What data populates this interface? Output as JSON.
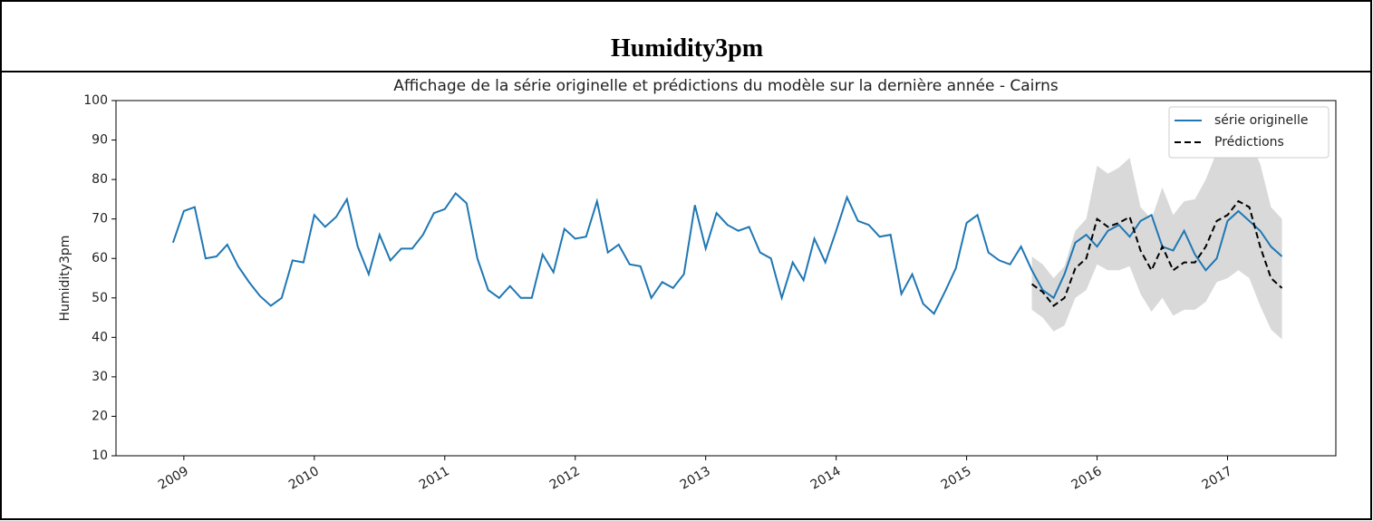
{
  "header": {
    "title": "Humidity3pm"
  },
  "chart_data": {
    "type": "line",
    "title": "Affichage de la série originelle et prédictions du modèle sur la dernière année - Cairns",
    "y_label": "Humidity3pm",
    "x": [
      2008.917,
      2009.0,
      2009.083,
      2009.167,
      2009.25,
      2009.333,
      2009.417,
      2009.5,
      2009.583,
      2009.667,
      2009.75,
      2009.833,
      2009.917,
      2010.0,
      2010.083,
      2010.167,
      2010.25,
      2010.333,
      2010.417,
      2010.5,
      2010.583,
      2010.667,
      2010.75,
      2010.833,
      2010.917,
      2011.0,
      2011.083,
      2011.167,
      2011.25,
      2011.333,
      2011.417,
      2011.5,
      2011.583,
      2011.667,
      2011.75,
      2011.833,
      2011.917,
      2012.0,
      2012.083,
      2012.167,
      2012.25,
      2012.333,
      2012.417,
      2012.5,
      2012.583,
      2012.667,
      2012.75,
      2012.833,
      2012.917,
      2013.0,
      2013.083,
      2013.167,
      2013.25,
      2013.333,
      2013.417,
      2013.5,
      2013.583,
      2013.667,
      2013.75,
      2013.833,
      2013.917,
      2014.0,
      2014.083,
      2014.167,
      2014.25,
      2014.333,
      2014.417,
      2014.5,
      2014.583,
      2014.667,
      2014.75,
      2014.833,
      2014.917,
      2015.0,
      2015.083,
      2015.167,
      2015.25,
      2015.333,
      2015.417,
      2015.5,
      2015.583,
      2015.667,
      2015.75,
      2015.833,
      2015.917,
      2016.0,
      2016.083,
      2016.167,
      2016.25,
      2016.333,
      2016.417,
      2016.5,
      2016.583,
      2016.667,
      2016.75,
      2016.833,
      2016.917,
      2017.0,
      2017.083,
      2017.167,
      2017.25,
      2017.333,
      2017.417
    ],
    "series": [
      {
        "name": "série originelle",
        "color": "#1f77b4",
        "style": "solid",
        "values": [
          64,
          72,
          73,
          60,
          60.5,
          63.5,
          58,
          54,
          50.5,
          48,
          50,
          59.5,
          59,
          71,
          68,
          70.5,
          75,
          63,
          56,
          66,
          59.5,
          62.5,
          62.5,
          66,
          71.5,
          72.5,
          76.5,
          74,
          60,
          52,
          50,
          53,
          50,
          50,
          61,
          56.5,
          67.5,
          65,
          65.5,
          74.5,
          61.5,
          63.5,
          58.5,
          58,
          50,
          54,
          52.5,
          56,
          73.5,
          62.5,
          71.5,
          68.5,
          67,
          68,
          61.5,
          60,
          50,
          59,
          54.5,
          65,
          59,
          67,
          75.5,
          69.5,
          68.5,
          65.5,
          66,
          51,
          56,
          48.5,
          46,
          51.5,
          57.5,
          69,
          71,
          61.5,
          59.5,
          58.5,
          63,
          57,
          52,
          50,
          56,
          64,
          66,
          63,
          67,
          68.5,
          65.5,
          69.5,
          71,
          63,
          62,
          67,
          61,
          57,
          60,
          69.5,
          72,
          69.5,
          67,
          63,
          60.5
        ]
      },
      {
        "name": "Prédictions",
        "color": "#000000",
        "style": "dashed",
        "values": [
          null,
          null,
          null,
          null,
          null,
          null,
          null,
          null,
          null,
          null,
          null,
          null,
          null,
          null,
          null,
          null,
          null,
          null,
          null,
          null,
          null,
          null,
          null,
          null,
          null,
          null,
          null,
          null,
          null,
          null,
          null,
          null,
          null,
          null,
          null,
          null,
          null,
          null,
          null,
          null,
          null,
          null,
          null,
          null,
          null,
          null,
          null,
          null,
          null,
          null,
          null,
          null,
          null,
          null,
          null,
          null,
          null,
          null,
          null,
          null,
          null,
          null,
          null,
          null,
          null,
          null,
          null,
          null,
          null,
          null,
          null,
          null,
          null,
          null,
          null,
          null,
          null,
          null,
          null,
          53.5,
          51.5,
          48,
          50,
          57.5,
          60,
          70,
          68,
          69,
          70.5,
          62,
          57,
          63,
          57,
          59,
          59,
          63,
          69.5,
          71,
          74.5,
          73,
          63,
          55,
          52.5
        ]
      }
    ],
    "band": {
      "color": "#d9d9d9",
      "lower": [
        null,
        null,
        null,
        null,
        null,
        null,
        null,
        null,
        null,
        null,
        null,
        null,
        null,
        null,
        null,
        null,
        null,
        null,
        null,
        null,
        null,
        null,
        null,
        null,
        null,
        null,
        null,
        null,
        null,
        null,
        null,
        null,
        null,
        null,
        null,
        null,
        null,
        null,
        null,
        null,
        null,
        null,
        null,
        null,
        null,
        null,
        null,
        null,
        null,
        null,
        null,
        null,
        null,
        null,
        null,
        null,
        null,
        null,
        null,
        null,
        null,
        null,
        null,
        null,
        null,
        null,
        null,
        null,
        null,
        null,
        null,
        null,
        null,
        null,
        null,
        null,
        null,
        null,
        null,
        47,
        45,
        41.5,
        43,
        50,
        52,
        58.5,
        57,
        57,
        58,
        51,
        46.5,
        50,
        45.5,
        47,
        47,
        49,
        54,
        55,
        57,
        55,
        48,
        42,
        39.5
      ],
      "upper": [
        null,
        null,
        null,
        null,
        null,
        null,
        null,
        null,
        null,
        null,
        null,
        null,
        null,
        null,
        null,
        null,
        null,
        null,
        null,
        null,
        null,
        null,
        null,
        null,
        null,
        null,
        null,
        null,
        null,
        null,
        null,
        null,
        null,
        null,
        null,
        null,
        null,
        null,
        null,
        null,
        null,
        null,
        null,
        null,
        null,
        null,
        null,
        null,
        null,
        null,
        null,
        null,
        null,
        null,
        null,
        null,
        null,
        null,
        null,
        null,
        null,
        null,
        null,
        null,
        null,
        null,
        null,
        null,
        null,
        null,
        null,
        null,
        null,
        null,
        null,
        null,
        null,
        null,
        null,
        60.5,
        58.5,
        55,
        58,
        67,
        70,
        83.5,
        81.5,
        83,
        85.5,
        73,
        70,
        78,
        71,
        74.5,
        75,
        80,
        87,
        93,
        97,
        90,
        84,
        73,
        70
      ]
    },
    "xlim": [
      2008.48,
      2017.83
    ],
    "xticks": [
      2009,
      2010,
      2011,
      2012,
      2013,
      2014,
      2015,
      2016,
      2017
    ],
    "ylim": [
      10,
      100
    ],
    "yticks": [
      10,
      20,
      30,
      40,
      50,
      60,
      70,
      80,
      90,
      100
    ],
    "legend": "upper right"
  }
}
